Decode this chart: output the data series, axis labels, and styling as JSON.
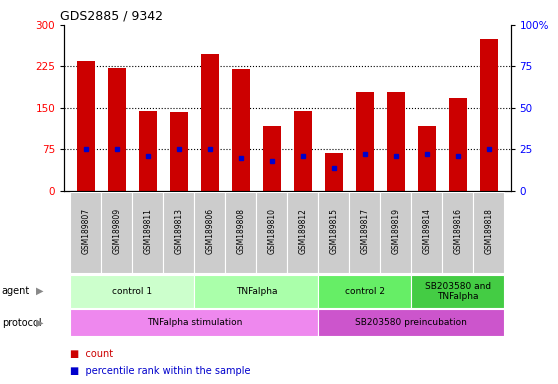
{
  "title": "GDS2885 / 9342",
  "samples": [
    "GSM189807",
    "GSM189809",
    "GSM189811",
    "GSM189813",
    "GSM189806",
    "GSM189808",
    "GSM189810",
    "GSM189812",
    "GSM189815",
    "GSM189817",
    "GSM189819",
    "GSM189814",
    "GSM189816",
    "GSM189818"
  ],
  "counts": [
    235,
    222,
    145,
    143,
    248,
    220,
    118,
    145,
    68,
    178,
    178,
    118,
    168,
    275
  ],
  "percentile_ranks": [
    25,
    25,
    21,
    25,
    25,
    20,
    18,
    21,
    14,
    22,
    21,
    22,
    21,
    25
  ],
  "ylim_left": [
    0,
    300
  ],
  "ylim_right": [
    0,
    100
  ],
  "yticks_left": [
    0,
    75,
    150,
    225,
    300
  ],
  "yticks_right": [
    0,
    25,
    50,
    75,
    100
  ],
  "ytick_labels_right": [
    "0",
    "25",
    "50",
    "75",
    "100%"
  ],
  "agent_groups": [
    {
      "label": "control 1",
      "start": 0,
      "end": 4,
      "color": "#ccffcc"
    },
    {
      "label": "TNFalpha",
      "start": 4,
      "end": 8,
      "color": "#aaffaa"
    },
    {
      "label": "control 2",
      "start": 8,
      "end": 11,
      "color": "#66ee66"
    },
    {
      "label": "SB203580 and\nTNFalpha",
      "start": 11,
      "end": 14,
      "color": "#44cc44"
    }
  ],
  "protocol_groups": [
    {
      "label": "TNFalpha stimulation",
      "start": 0,
      "end": 8,
      "color": "#ee88ee"
    },
    {
      "label": "SB203580 preincubation",
      "start": 8,
      "end": 14,
      "color": "#cc55cc"
    }
  ],
  "bar_color": "#cc0000",
  "dot_color": "#0000cc",
  "background_color": "#ffffff",
  "label_bg": "#cccccc",
  "agent_label": "agent",
  "protocol_label": "protocol",
  "legend_count": "count",
  "legend_pct": "percentile rank within the sample"
}
